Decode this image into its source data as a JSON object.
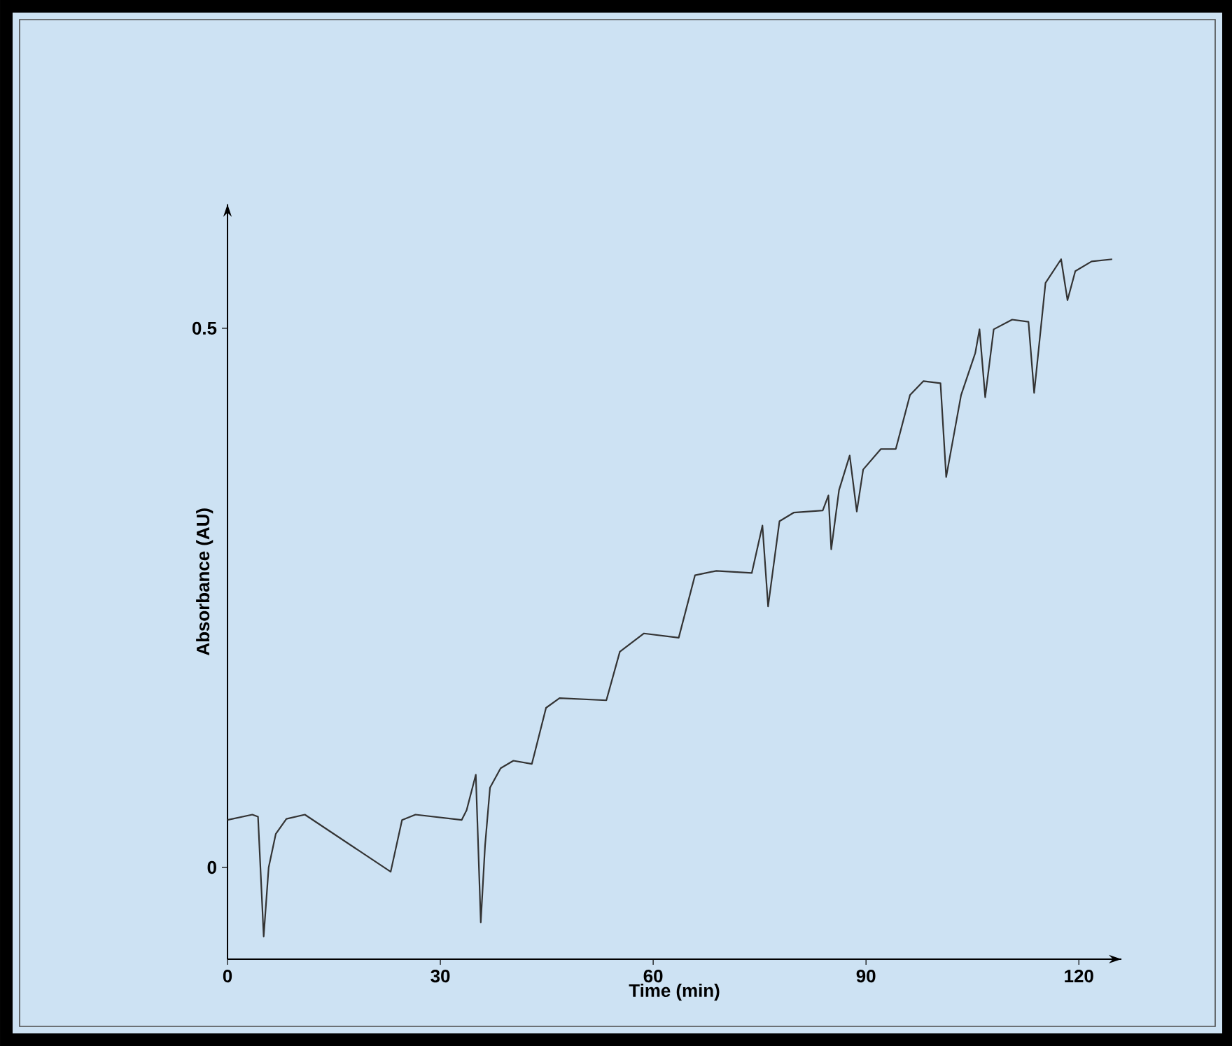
{
  "chart_data": {
    "type": "line",
    "xlabel": "Time (min)",
    "ylabel": "Absorbance (AU)",
    "xlim": [
      0,
      126
    ],
    "ylim": [
      -0.085,
      0.615
    ],
    "xticks": [
      0,
      30,
      60,
      90,
      120
    ],
    "yticks": [
      0,
      0.5
    ],
    "marker": "none",
    "x": [
      0,
      3.5,
      4.3,
      5.1,
      5.8,
      6.8,
      8.3,
      10.9,
      23.0,
      24.6,
      26.5,
      33.0,
      33.7,
      35.0,
      35.7,
      36.3,
      37.0,
      38.5,
      40.3,
      42.9,
      44.9,
      46.8,
      53.4,
      55.3,
      58.7,
      63.6,
      65.9,
      68.9,
      73.9,
      75.4,
      76.2,
      77.8,
      79.8,
      83.9,
      84.7,
      85.1,
      86.2,
      87.7,
      88.7,
      89.6,
      92.1,
      94.2,
      96.2,
      98.1,
      100.5,
      101.3,
      103.4,
      105.4,
      106.0,
      106.8,
      108.0,
      110.6,
      112.9,
      113.7,
      115.3,
      117.5,
      118.4,
      119.5,
      121.8,
      124.7
    ],
    "series": [
      {
        "color": "#333333",
        "values": [
          0.044,
          0.049,
          0.047,
          -0.064,
          0.0,
          0.031,
          0.045,
          0.049,
          -0.004,
          0.044,
          0.049,
          0.044,
          0.053,
          0.086,
          -0.051,
          0.02,
          0.074,
          0.092,
          0.099,
          0.096,
          0.148,
          0.157,
          0.155,
          0.2,
          0.217,
          0.213,
          0.271,
          0.275,
          0.273,
          0.317,
          0.242,
          0.321,
          0.329,
          0.331,
          0.345,
          0.295,
          0.35,
          0.382,
          0.33,
          0.369,
          0.388,
          0.388,
          0.438,
          0.451,
          0.449,
          0.362,
          0.438,
          0.477,
          0.499,
          0.436,
          0.499,
          0.508,
          0.506,
          0.44,
          0.542,
          0.564,
          0.526,
          0.553,
          0.562,
          0.564
        ]
      }
    ]
  }
}
